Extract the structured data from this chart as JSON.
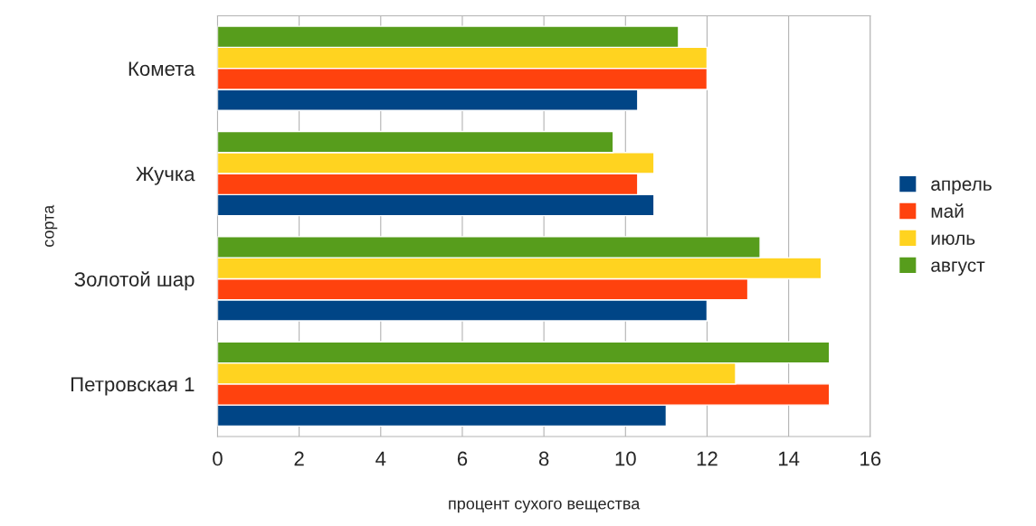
{
  "chart_data": {
    "type": "bar",
    "orientation": "horizontal",
    "xlabel": "процент сухого вещества",
    "ylabel": "сорта",
    "categories": [
      "Комета",
      "Жучка",
      "Золотой шар",
      "Петровская 1"
    ],
    "series": [
      {
        "name": "апрель",
        "color": "#004586",
        "values": [
          10.3,
          10.7,
          12,
          11
        ]
      },
      {
        "name": "май",
        "color": "#ff420e",
        "values": [
          12,
          10.3,
          13,
          15
        ]
      },
      {
        "name": "июль",
        "color": "#ffd320",
        "values": [
          12,
          10.7,
          14.8,
          12.7
        ]
      },
      {
        "name": "август",
        "color": "#579d1c",
        "values": [
          11.3,
          9.7,
          13.3,
          15
        ]
      }
    ],
    "xlim": [
      0,
      16
    ],
    "xticks": [
      0,
      2,
      4,
      6,
      8,
      10,
      12,
      14,
      16
    ],
    "grid": "x",
    "legend": "right"
  }
}
